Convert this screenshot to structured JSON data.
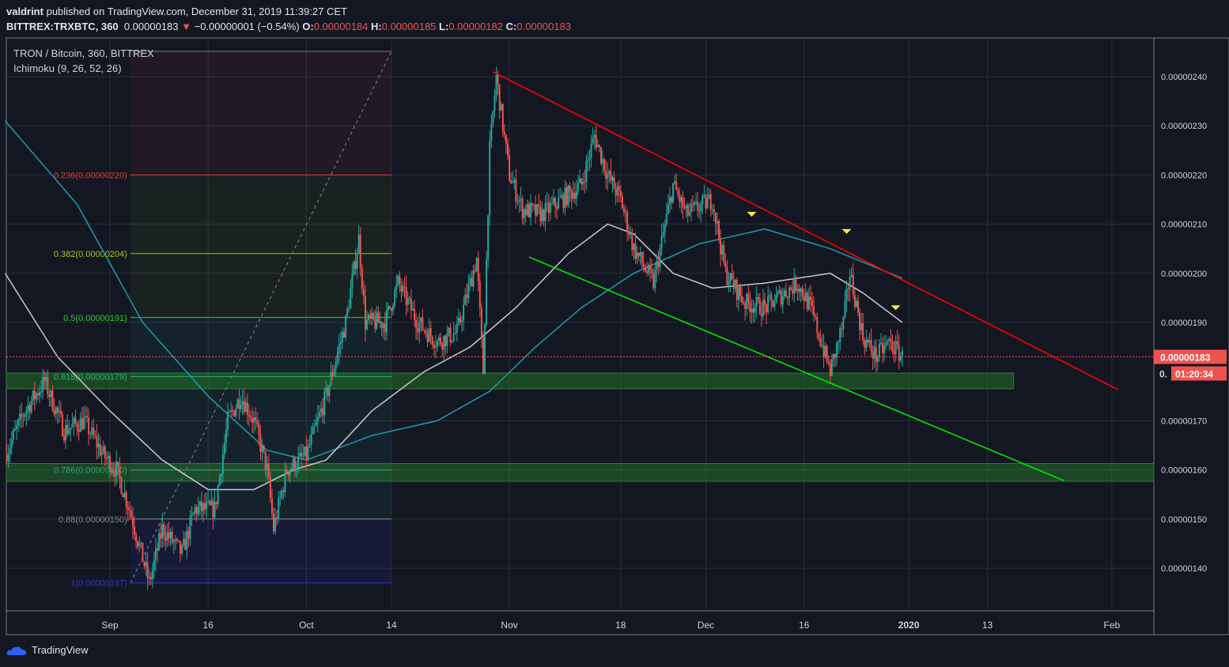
{
  "header": {
    "author": "valdrint",
    "published": "published on TradingView.com, December 31, 2019 11:39:27 CET",
    "symbol": "BITTREX:TRXBTC, 360",
    "last": "0.00000183",
    "change": "−0.00000001 (−0.54%)",
    "o_label": "O:",
    "o": "0.00000184",
    "h_label": "H:",
    "h": "0.00000185",
    "l_label": "L:",
    "l": "0.00000182",
    "c_label": "C:",
    "c": "0.00000183"
  },
  "legend": {
    "title": "TRON / Bitcoin, 360, BITTREX",
    "indicator": "Ichimoku (9, 26, 52, 26)"
  },
  "brand": "TradingView",
  "price_tag": "0.00000183",
  "countdown": "01:20:34",
  "hidden_tick": "0.",
  "colors": {
    "bg": "#131722",
    "up": "#26a69a",
    "down": "#ef5350",
    "red_trend": "#ff0000",
    "green_trend": "#00e600",
    "zone": "#1b5e20",
    "ma_gray": "#c9c9c9",
    "ma_teal": "#1f9aad",
    "marker": "#ffeb3b"
  },
  "chart_data": {
    "type": "candlestick",
    "interval": "360",
    "unit": "BTC (×1e-8)",
    "y_ticks": [
      "0.00000240",
      "0.00000230",
      "0.00000220",
      "0.00000210",
      "0.00000200",
      "0.00000190",
      "0.00000170",
      "0.00000160",
      "0.00000150",
      "0.00000140"
    ],
    "y_tick_values": [
      240,
      230,
      220,
      210,
      200,
      190,
      170,
      160,
      150,
      140
    ],
    "x_ticks": [
      {
        "label": "Sep",
        "day": 0
      },
      {
        "label": "16",
        "day": 15
      },
      {
        "label": "Oct",
        "day": 30
      },
      {
        "label": "14",
        "day": 43
      },
      {
        "label": "Nov",
        "day": 61
      },
      {
        "label": "18",
        "day": 78
      },
      {
        "label": "Dec",
        "day": 91
      },
      {
        "label": "16",
        "day": 106
      },
      {
        "label": "2020",
        "day": 122
      },
      {
        "label": "13",
        "day": 134
      },
      {
        "label": "Feb",
        "day": 153
      }
    ],
    "price_path_days_from_sep1": [
      [
        -16,
        163
      ],
      [
        -13,
        172
      ],
      [
        -10,
        178
      ],
      [
        -7,
        168
      ],
      [
        -4,
        170
      ],
      [
        -1,
        163
      ],
      [
        1,
        160
      ],
      [
        3,
        152
      ],
      [
        6,
        137
      ],
      [
        8,
        148
      ],
      [
        11,
        143
      ],
      [
        13,
        152
      ],
      [
        16,
        152
      ],
      [
        18,
        170
      ],
      [
        20,
        175
      ],
      [
        22,
        170
      ],
      [
        24,
        160
      ],
      [
        25,
        148
      ],
      [
        27,
        160
      ],
      [
        30,
        163
      ],
      [
        33,
        175
      ],
      [
        36,
        190
      ],
      [
        38,
        207
      ],
      [
        39,
        190
      ],
      [
        42,
        190
      ],
      [
        44,
        198
      ],
      [
        47,
        190
      ],
      [
        50,
        186
      ],
      [
        53,
        188
      ],
      [
        56,
        203
      ],
      [
        57,
        180
      ],
      [
        58,
        225
      ],
      [
        59,
        240
      ],
      [
        61,
        220
      ],
      [
        63,
        213
      ],
      [
        66,
        212
      ],
      [
        69,
        215
      ],
      [
        72,
        218
      ],
      [
        74,
        228
      ],
      [
        76,
        220
      ],
      [
        78,
        215
      ],
      [
        80,
        205
      ],
      [
        83,
        198
      ],
      [
        86,
        218
      ],
      [
        88,
        212
      ],
      [
        92,
        215
      ],
      [
        94,
        200
      ],
      [
        97,
        194
      ],
      [
        100,
        193
      ],
      [
        103,
        196
      ],
      [
        105,
        198
      ],
      [
        107,
        193
      ],
      [
        110,
        180
      ],
      [
        112,
        190
      ],
      [
        113,
        200
      ],
      [
        115,
        187
      ],
      [
        117,
        183
      ],
      [
        119,
        186
      ],
      [
        121,
        183
      ]
    ],
    "ma_gray": [
      [
        -16,
        200
      ],
      [
        -8,
        183
      ],
      [
        0,
        172
      ],
      [
        8,
        162
      ],
      [
        15,
        156
      ],
      [
        22,
        156
      ],
      [
        28,
        160
      ],
      [
        33,
        162
      ],
      [
        40,
        172
      ],
      [
        48,
        180
      ],
      [
        55,
        185
      ],
      [
        62,
        193
      ],
      [
        70,
        204
      ],
      [
        76,
        210
      ],
      [
        80,
        208
      ],
      [
        86,
        200
      ],
      [
        92,
        197
      ],
      [
        100,
        198
      ],
      [
        110,
        200
      ],
      [
        115,
        196
      ],
      [
        121,
        190
      ]
    ],
    "ma_teal": [
      [
        -16,
        231
      ],
      [
        -5,
        214
      ],
      [
        5,
        190
      ],
      [
        15,
        175
      ],
      [
        24,
        164
      ],
      [
        30,
        162
      ],
      [
        40,
        167
      ],
      [
        50,
        170
      ],
      [
        58,
        176
      ],
      [
        65,
        185
      ],
      [
        72,
        193
      ],
      [
        80,
        200
      ],
      [
        90,
        206
      ],
      [
        100,
        209
      ],
      [
        110,
        205
      ],
      [
        121,
        199
      ]
    ],
    "trendlines": [
      {
        "color": "red",
        "from": [
          58.5,
          241
        ],
        "to": [
          154,
          176.3
        ]
      },
      {
        "color": "green",
        "from": [
          64,
          203.3
        ],
        "to": [
          145.7,
          157.8
        ]
      }
    ],
    "zones": [
      {
        "low": 176.5,
        "high": 179.7,
        "to_day": 138
      },
      {
        "low": 157.7,
        "high": 161.3,
        "to_day": null
      }
    ],
    "fib": {
      "from_day": 3,
      "to_day": 43,
      "levels": [
        {
          "ratio": "0.236",
          "price": "0.00000220",
          "v": 220,
          "color": "#e53935"
        },
        {
          "ratio": "0.382",
          "price": "0.00000204",
          "v": 204,
          "color": "#9ccc16"
        },
        {
          "ratio": "0.5",
          "price": "0.00000191",
          "v": 191,
          "color": "#2bd62b"
        },
        {
          "ratio": "0.618",
          "price": "0.00000179",
          "v": 179,
          "color": "#26c281"
        },
        {
          "ratio": "0.786",
          "price": "0.00000160",
          "v": 160,
          "color": "#26a6a6"
        },
        {
          "ratio": "0.88",
          "price": "0.00000150",
          "v": 150,
          "color": "#888888"
        },
        {
          "ratio": "1",
          "price": "0.00000137",
          "v": 137,
          "color": "#3333cc"
        }
      ]
    },
    "markers": [
      [
        98,
        212
      ],
      [
        112.5,
        208.5
      ],
      [
        120,
        193
      ]
    ],
    "last_price": 183
  }
}
